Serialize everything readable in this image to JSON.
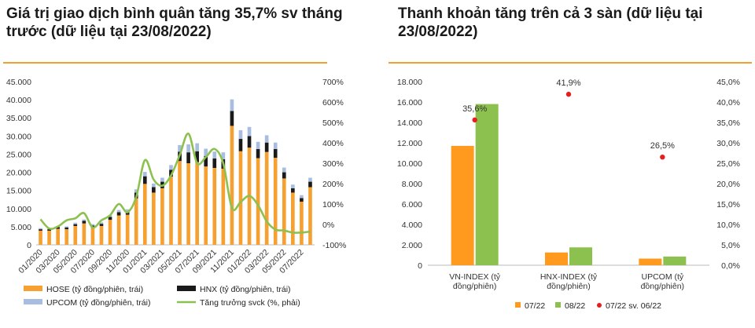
{
  "left_title": "Giá trị giao dịch bình quân tăng 35,7% sv tháng trước (dữ liệu tại 23/08/2022)",
  "right_title": "Thanh khoản tăng trên cả 3 sàn (dữ liệu tại 23/08/2022)",
  "colors": {
    "accent": "#f0a030",
    "hose": "#f5a030",
    "hnx": "#1a1a1a",
    "upcom": "#a9bde0",
    "growth": "#8dc14f",
    "jul22": "#ff9a1f",
    "aug22": "#8dc14f",
    "yoy": "#e61e1e"
  },
  "chart_data": [
    {
      "type": "bar",
      "stacked": true,
      "title": "Giá trị giao dịch bình quân tăng 35,7% sv tháng trước (dữ liệu tại 23/08/2022)",
      "x_tick_labels": [
        "01/2020",
        "03/2020",
        "05/2020",
        "07/2020",
        "09/2020",
        "11/2020",
        "01/2021",
        "03/2021",
        "05/2021",
        "07/2021",
        "09/2021",
        "11/2021",
        "01/2022",
        "03/2022",
        "05/2022",
        "07/2022"
      ],
      "categories": [
        "01/2020",
        "02/2020",
        "03/2020",
        "04/2020",
        "05/2020",
        "06/2020",
        "07/2020",
        "08/2020",
        "09/2020",
        "10/2020",
        "11/2020",
        "12/2020",
        "01/2021",
        "02/2021",
        "03/2021",
        "04/2021",
        "05/2021",
        "06/2021",
        "07/2021",
        "08/2021",
        "09/2021",
        "10/2021",
        "11/2021",
        "12/2021",
        "01/2022",
        "02/2022",
        "03/2022",
        "04/2022",
        "05/2022",
        "06/2022",
        "07/2022",
        "08/2022"
      ],
      "y_left": {
        "ylim": [
          0,
          45000
        ],
        "ticks": [
          "0",
          "5.000",
          "10.000",
          "15.000",
          "20.000",
          "25.000",
          "30.000",
          "35.000",
          "40.000",
          "45.000"
        ]
      },
      "y_right": {
        "ylim": [
          -100,
          700
        ],
        "ticks": [
          "-100%",
          "0%",
          "100%",
          "200%",
          "300%",
          "400%",
          "500%",
          "600%",
          "700%"
        ]
      },
      "series": [
        {
          "name": "HOSE (tỷ đồng/phiên, trái)",
          "axis": "left",
          "values": [
            3900,
            3900,
            4400,
            4300,
            5200,
            5900,
            4700,
            5200,
            6900,
            8100,
            8300,
            12800,
            16800,
            14400,
            15600,
            18800,
            23100,
            22500,
            22800,
            21600,
            21200,
            21000,
            32800,
            25800,
            26800,
            23900,
            25600,
            24000,
            18300,
            14400,
            11900,
            15900
          ]
        },
        {
          "name": "HNX (tỷ đồng/phiên, trái)",
          "axis": "left",
          "values": [
            400,
            400,
            500,
            500,
            500,
            700,
            600,
            600,
            800,
            900,
            900,
            1600,
            2100,
            1500,
            1800,
            1900,
            2600,
            3000,
            3000,
            2900,
            2600,
            2600,
            4100,
            3400,
            3200,
            2500,
            2600,
            2400,
            1700,
            1200,
            1000,
            1500
          ]
        },
        {
          "name": "UPCOM (tỷ đồng/phiên, trái)",
          "axis": "left",
          "values": [
            300,
            300,
            300,
            300,
            400,
            400,
            400,
            400,
            500,
            600,
            600,
            900,
            1200,
            1000,
            1100,
            1300,
            1800,
            2200,
            2200,
            2000,
            1900,
            1900,
            3200,
            2400,
            2500,
            2000,
            2000,
            1800,
            1300,
            1000,
            800,
            1100
          ]
        },
        {
          "name": "Tăng trưởng svck (%, phải)",
          "axis": "right",
          "type": "line",
          "values": [
            25,
            -20,
            -10,
            20,
            30,
            55,
            -15,
            20,
            45,
            100,
            60,
            135,
            315,
            220,
            190,
            240,
            340,
            445,
            300,
            330,
            370,
            300,
            80,
            110,
            140,
            95,
            15,
            -25,
            -30,
            -40,
            -40,
            -35
          ]
        }
      ],
      "legend": "bottom"
    },
    {
      "type": "bar",
      "title": "Thanh khoản tăng trên cả 3 sàn (dữ liệu tại 23/08/2022)",
      "categories": [
        "VN-INDEX (tỷ đồng/phiên)",
        "HNX-INDEX (tỷ đồng/phiên)",
        "UPCOM (tỷ đồng/phiên)"
      ],
      "category_lines": [
        [
          "VN-INDEX (tỷ",
          "đồng/phiên)"
        ],
        [
          "HNX-INDEX (tỷ",
          "đồng/phiên)"
        ],
        [
          "UPCOM (tỷ",
          "đồng/phiên)"
        ]
      ],
      "y_left": {
        "ylim": [
          0,
          18000
        ],
        "ticks": [
          "0",
          "2.000",
          "4.000",
          "6.000",
          "8.000",
          "10.000",
          "12.000",
          "14.000",
          "16.000",
          "18.000"
        ]
      },
      "y_right": {
        "ylim": [
          0,
          45
        ],
        "ticks": [
          "0,0%",
          "5,0%",
          "10,0%",
          "15,0%",
          "20,0%",
          "25,0%",
          "30,0%",
          "35,0%",
          "40,0%",
          "45,0%"
        ]
      },
      "series": [
        {
          "name": "07/22",
          "axis": "left",
          "values": [
            11700,
            1250,
            650
          ]
        },
        {
          "name": "08/22",
          "axis": "left",
          "values": [
            15800,
            1750,
            850
          ]
        },
        {
          "name": "07/22 sv. 06/22",
          "axis": "right",
          "type": "scatter",
          "values": [
            35.6,
            41.9,
            26.5
          ],
          "labels": [
            "35,6%",
            "41,9%",
            "26,5%"
          ]
        }
      ],
      "legend": "bottom"
    }
  ]
}
